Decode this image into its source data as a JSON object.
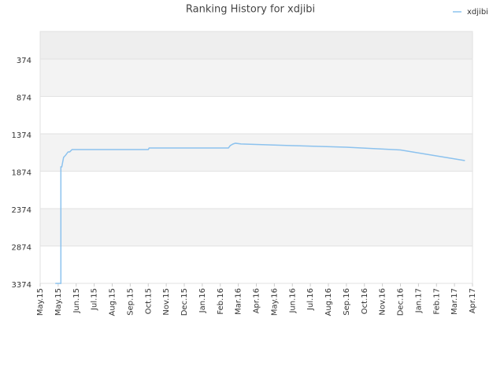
{
  "chart_data": {
    "type": "line",
    "title": "Ranking History for xdjibi",
    "x": [
      0.84,
      1.15,
      1.15,
      1.2,
      1.3,
      1.42,
      1.55,
      1.64,
      1.77,
      6.0,
      6.05,
      10.45,
      10.55,
      10.7,
      10.84,
      11.15,
      14,
      17,
      20,
      23.58
    ],
    "series": [
      {
        "name": "xdjibi",
        "color": "#8cc2ee",
        "values": [
          3374,
          3374,
          1816,
          1816,
          1690,
          1658,
          1616,
          1616,
          1585,
          1585,
          1564,
          1564,
          1532,
          1511,
          1500,
          1510,
          1532,
          1553,
          1590,
          1732
        ]
      }
    ],
    "xlim": [
      0,
      24
    ],
    "xticks": [
      {
        "value": 0,
        "label": "May.15"
      },
      {
        "value": 1,
        "label": "May.15"
      },
      {
        "value": 2,
        "label": "Jun.15"
      },
      {
        "value": 3,
        "label": "Jul.15"
      },
      {
        "value": 4,
        "label": "Aug.15"
      },
      {
        "value": 5,
        "label": "Sep.15"
      },
      {
        "value": 6,
        "label": "Oct.15"
      },
      {
        "value": 7,
        "label": "Nov.15"
      },
      {
        "value": 8,
        "label": "Dec.15"
      },
      {
        "value": 9,
        "label": "Jan.16"
      },
      {
        "value": 10,
        "label": "Feb.16"
      },
      {
        "value": 11,
        "label": "Mar.16"
      },
      {
        "value": 12,
        "label": "Apr.16"
      },
      {
        "value": 13,
        "label": "May.16"
      },
      {
        "value": 14,
        "label": "Jun.16"
      },
      {
        "value": 15,
        "label": "Jul.16"
      },
      {
        "value": 16,
        "label": "Aug.16"
      },
      {
        "value": 17,
        "label": "Sep.16"
      },
      {
        "value": 18,
        "label": "Oct.16"
      },
      {
        "value": 19,
        "label": "Nov.16"
      },
      {
        "value": 20,
        "label": "Dec.16"
      },
      {
        "value": 21,
        "label": "Jan.17"
      },
      {
        "value": 22,
        "label": "Feb.17"
      },
      {
        "value": 23,
        "label": "Mar.17"
      },
      {
        "value": 24,
        "label": "Apr.17"
      }
    ],
    "ylim": [
      3374,
      6
    ],
    "yticks": [
      374,
      874,
      1374,
      1874,
      2374,
      2874,
      3374
    ],
    "grid": true
  }
}
